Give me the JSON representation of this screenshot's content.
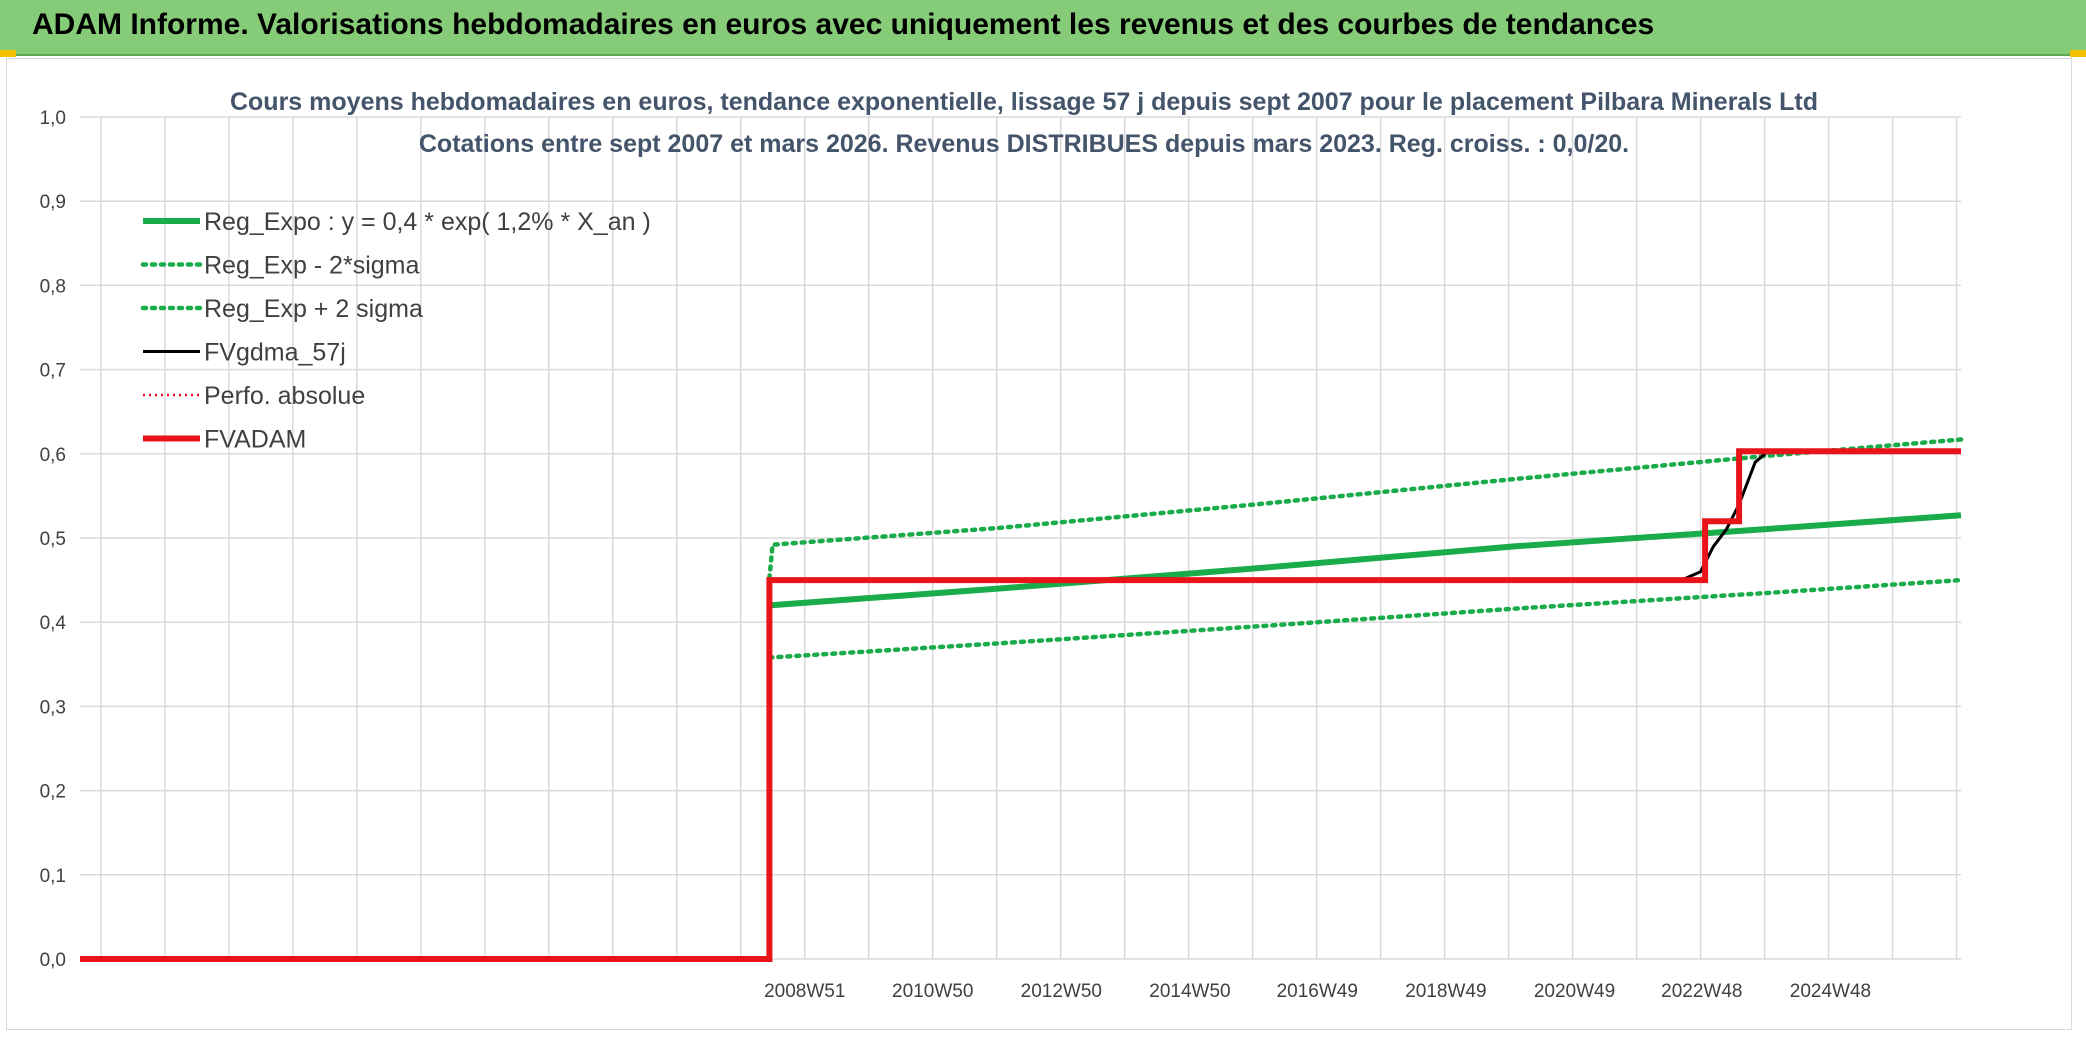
{
  "header": {
    "title": "ADAM Informe. Valorisations hebdomadaires en euros avec uniquement les revenus et des courbes de tendances"
  },
  "colors": {
    "header_bg": "#86cc78",
    "green": "#1aab4b",
    "red": "#e8141a",
    "black": "#000000",
    "grid": "#d9d9d9"
  },
  "chart_data": {
    "type": "line",
    "title": "Cours moyens hebdomadaires en euros, tendance exponentielle, lissage 57 j depuis sept 2007 pour le placement Pilbara Minerals Ltd",
    "subtitle": "Cotations entre sept 2007 et mars 2026. Revenus DISTRIBUES depuis mars 2023. Reg. croiss. : 0,0/20.",
    "xlabel": "",
    "ylabel": "",
    "xlim": [
      1997.7,
      2026.95
    ],
    "ylim": [
      0,
      1
    ],
    "x_ticks": [
      {
        "label": "2008W51",
        "x": 2008.97
      },
      {
        "label": "2010W50",
        "x": 2010.96
      },
      {
        "label": "2012W50",
        "x": 2012.96
      },
      {
        "label": "2014W50",
        "x": 2014.96
      },
      {
        "label": "2016W49",
        "x": 2016.94
      },
      {
        "label": "2018W49",
        "x": 2018.94
      },
      {
        "label": "2020W49",
        "x": 2020.94
      },
      {
        "label": "2022W48",
        "x": 2022.92
      },
      {
        "label": "2024W48",
        "x": 2024.92
      }
    ],
    "y_ticks": [
      "0,0",
      "0,1",
      "0,2",
      "0,3",
      "0,4",
      "0,5",
      "0,6",
      "0,7",
      "0,8",
      "0,9",
      "1,0"
    ],
    "y_tick_values": [
      0,
      0.1,
      0.2,
      0.3,
      0.4,
      0.5,
      0.6,
      0.7,
      0.8,
      0.9,
      1.0
    ],
    "grid": true,
    "legend_position": "top-left",
    "series": [
      {
        "name": "Reg_Expo : y = 0,4 * exp( 1,2% *  X_an )",
        "color": "#1aab4b",
        "style": "solid-thick",
        "points": [
          [
            2008.42,
            0.42
          ],
          [
            2012.0,
            0.44
          ],
          [
            2016.0,
            0.464
          ],
          [
            2020.0,
            0.49
          ],
          [
            2024.0,
            0.511
          ],
          [
            2026.95,
            0.527
          ]
        ]
      },
      {
        "name": "Reg_Exp - 2*sigma",
        "color": "#1aab4b",
        "style": "dotted",
        "points": [
          [
            2008.42,
            0.358
          ],
          [
            2012.0,
            0.375
          ],
          [
            2016.0,
            0.395
          ],
          [
            2020.0,
            0.416
          ],
          [
            2024.0,
            0.435
          ],
          [
            2026.95,
            0.45
          ]
        ]
      },
      {
        "name": "Reg_Exp + 2 sigma",
        "color": "#1aab4b",
        "style": "dotted",
        "points": [
          [
            2008.42,
            0.452
          ],
          [
            2008.47,
            0.492
          ],
          [
            2012.0,
            0.512
          ],
          [
            2016.0,
            0.54
          ],
          [
            2020.0,
            0.57
          ],
          [
            2024.0,
            0.598
          ],
          [
            2026.95,
            0.617
          ]
        ]
      },
      {
        "name": "FVgdma_57j",
        "color": "#000000",
        "style": "solid",
        "points": [
          [
            1997.7,
            0.0
          ],
          [
            2008.42,
            0.0
          ],
          [
            2008.42,
            0.45
          ],
          [
            2022.6,
            0.45
          ],
          [
            2022.9,
            0.46
          ],
          [
            2023.1,
            0.49
          ],
          [
            2023.3,
            0.51
          ],
          [
            2023.5,
            0.54
          ],
          [
            2023.75,
            0.59
          ],
          [
            2023.95,
            0.603
          ],
          [
            2026.95,
            0.603
          ]
        ]
      },
      {
        "name": "Perfo. absolue",
        "color": "#e8141a",
        "style": "dotted-thin",
        "points": []
      },
      {
        "name": "FVADAM",
        "color": "#e8141a",
        "style": "solid-thick",
        "points": [
          [
            1997.7,
            0.0
          ],
          [
            2008.42,
            0.0
          ],
          [
            2008.42,
            0.45
          ],
          [
            2022.97,
            0.45
          ],
          [
            2022.97,
            0.52
          ],
          [
            2023.5,
            0.52
          ],
          [
            2023.5,
            0.603
          ],
          [
            2026.95,
            0.603
          ]
        ]
      }
    ]
  }
}
